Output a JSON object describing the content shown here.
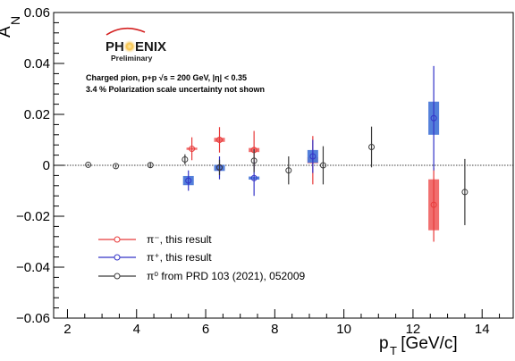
{
  "chart_data": {
    "type": "scatter",
    "xlabel": "p",
    "xlabel_sub": "T",
    "xlabel_unit": " [GeV/c]",
    "ylabel": "A",
    "ylabel_sub": "N",
    "xlim": [
      1.6,
      14.9
    ],
    "ylim": [
      -0.06,
      0.06
    ],
    "x_ticks": [
      2,
      4,
      6,
      8,
      10,
      12,
      14
    ],
    "y_ticks": [
      -0.06,
      -0.04,
      -0.02,
      0,
      0.02,
      0.04,
      0.06
    ],
    "y_tick_labels": [
      "−0.06",
      "−0.04",
      "−0.02",
      "0",
      "0.02",
      "0.04",
      "0.06"
    ],
    "zero_line": true,
    "logo": {
      "text_left": "PH",
      "text_right": "ENIX",
      "subtitle": "Preliminary"
    },
    "annotations": [
      "Charged pion, p+p  √s = 200 GeV, |η| < 0.35",
      "3.4 % Polarization scale uncertainty not shown"
    ],
    "legend": {
      "position": "bottom-left"
    },
    "series": [
      {
        "name": "π⁻, this result",
        "color": "#e83a3a",
        "box_color": "#f06666",
        "points": [
          {
            "x": 5.6,
            "y": 0.0065,
            "err": 0.0045,
            "sys": 0.0
          },
          {
            "x": 6.4,
            "y": 0.01,
            "err": 0.005,
            "sys": 0.0008
          },
          {
            "x": 7.4,
            "y": 0.006,
            "err": 0.0075,
            "sys": 0.0008
          },
          {
            "x": 9.1,
            "y": 0.002,
            "err": 0.0095,
            "sys": 0.0012
          },
          {
            "x": 12.6,
            "y": -0.0155,
            "err": 0.0145,
            "sys": 0.01
          }
        ]
      },
      {
        "name": "π⁺, this result",
        "color": "#3434c8",
        "box_color": "#4a78d8",
        "points": [
          {
            "x": 5.5,
            "y": -0.006,
            "err": 0.004,
            "sys": 0.0018
          },
          {
            "x": 6.4,
            "y": -0.001,
            "err": 0.0045,
            "sys": 0.0012
          },
          {
            "x": 7.4,
            "y": -0.005,
            "err": 0.007,
            "sys": 0.0006
          },
          {
            "x": 9.1,
            "y": 0.0035,
            "err": 0.0065,
            "sys": 0.0025
          },
          {
            "x": 12.6,
            "y": 0.0185,
            "err": 0.0205,
            "sys": 0.0065
          }
        ]
      },
      {
        "name": "π⁰ from PRD 103 (2021), 052009",
        "color": "#3a3a3a",
        "points": [
          {
            "x": 2.6,
            "y": 0.0002,
            "err": 0.0004
          },
          {
            "x": 3.4,
            "y": -0.0003,
            "err": 0.0006
          },
          {
            "x": 4.4,
            "y": 0.0001,
            "err": 0.001
          },
          {
            "x": 5.4,
            "y": 0.0023,
            "err": 0.002
          },
          {
            "x": 6.4,
            "y": -0.0008,
            "err": 0.003
          },
          {
            "x": 7.4,
            "y": 0.0018,
            "err": 0.0045
          },
          {
            "x": 8.4,
            "y": -0.002,
            "err": 0.0055
          },
          {
            "x": 9.4,
            "y": 0.0,
            "err": 0.0075
          },
          {
            "x": 10.8,
            "y": 0.0072,
            "err": 0.008
          },
          {
            "x": 13.5,
            "y": -0.0105,
            "err": 0.013
          }
        ]
      }
    ]
  }
}
